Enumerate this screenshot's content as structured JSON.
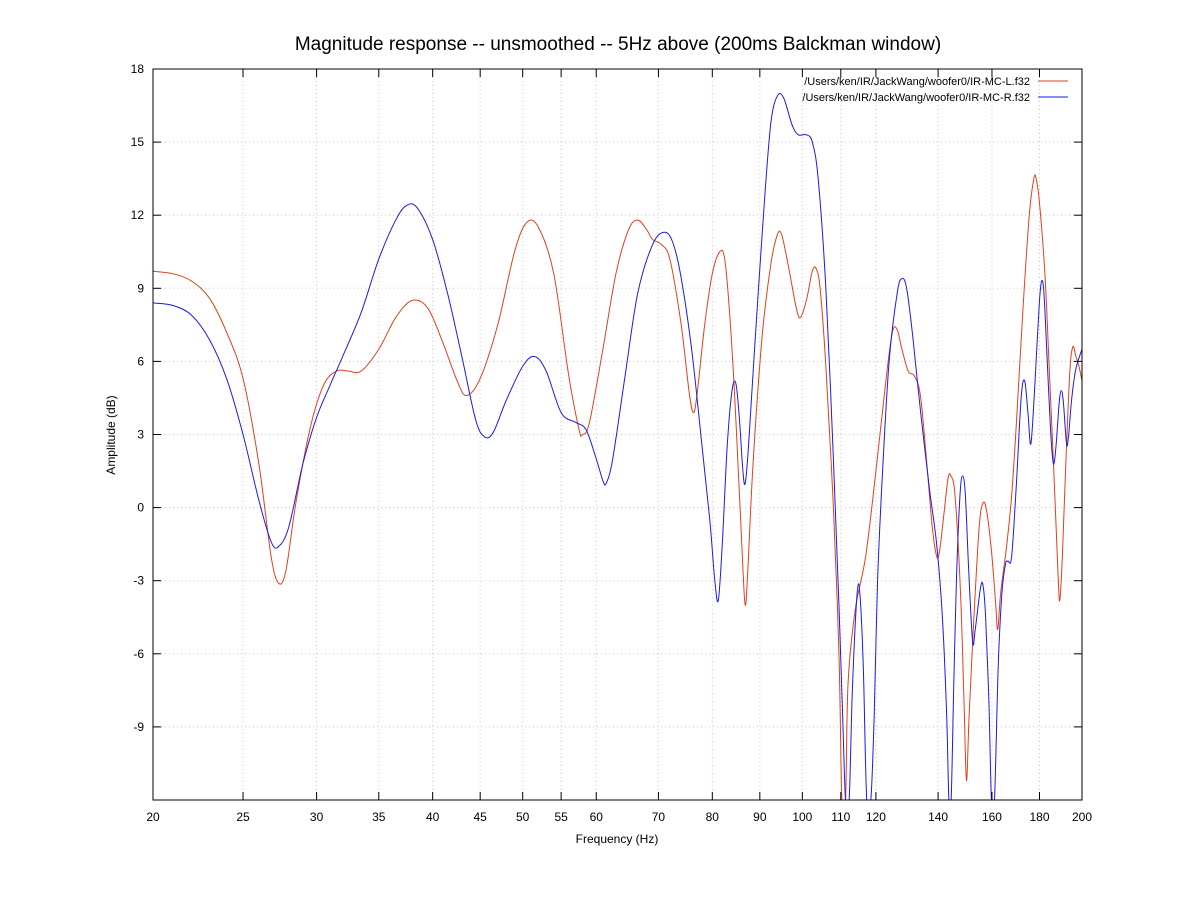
{
  "chart_data": {
    "type": "line",
    "title": "Magnitude response -- unsmoothed -- 5Hz above (200ms Balckman window)",
    "xlabel": "Frequency (Hz)",
    "ylabel": "Amplitude (dB)",
    "xscale": "log",
    "xlim": [
      20,
      200
    ],
    "ylim": [
      -12,
      18
    ],
    "xticks": [
      20,
      25,
      30,
      35,
      40,
      45,
      50,
      55,
      60,
      70,
      80,
      90,
      100,
      110,
      120,
      140,
      160,
      180,
      200
    ],
    "yticks": [
      -9,
      -6,
      -3,
      0,
      3,
      6,
      9,
      12,
      15,
      18
    ],
    "grid": true,
    "legend_position": "top-right",
    "series": [
      {
        "name": "/Users/ken/IR/JackWang/woofer0/IR-MC-L.f32",
        "color": "#e0401a",
        "points": [
          [
            20,
            9.7
          ],
          [
            21,
            9.6
          ],
          [
            22,
            9.3
          ],
          [
            23,
            8.6
          ],
          [
            24,
            7.2
          ],
          [
            25,
            5.3
          ],
          [
            26,
            1.8
          ],
          [
            26.8,
            -2.0
          ],
          [
            27.3,
            -3.1
          ],
          [
            27.8,
            -2.6
          ],
          [
            28.5,
            0.2
          ],
          [
            29.5,
            3.2
          ],
          [
            30.5,
            5.0
          ],
          [
            31.5,
            5.6
          ],
          [
            32.5,
            5.6
          ],
          [
            33.5,
            5.6
          ],
          [
            35,
            6.5
          ],
          [
            36.5,
            7.8
          ],
          [
            38,
            8.5
          ],
          [
            39.5,
            8.2
          ],
          [
            41,
            6.8
          ],
          [
            42.5,
            5.2
          ],
          [
            43.5,
            4.6
          ],
          [
            45,
            5.3
          ],
          [
            47,
            7.5
          ],
          [
            49,
            10.5
          ],
          [
            50.5,
            11.7
          ],
          [
            52,
            11.5
          ],
          [
            54,
            9.6
          ],
          [
            56,
            5.5
          ],
          [
            57.5,
            3.2
          ],
          [
            58,
            3.0
          ],
          [
            59,
            3.5
          ],
          [
            61,
            6.5
          ],
          [
            63,
            9.6
          ],
          [
            65,
            11.4
          ],
          [
            66.5,
            11.8
          ],
          [
            68,
            11.4
          ],
          [
            69,
            11.0
          ],
          [
            70.5,
            10.8
          ],
          [
            72,
            10.2
          ],
          [
            74,
            7.6
          ],
          [
            75.5,
            4.8
          ],
          [
            76.3,
            3.9
          ],
          [
            77,
            4.6
          ],
          [
            78.5,
            7.5
          ],
          [
            80,
            9.6
          ],
          [
            81.5,
            10.5
          ],
          [
            82.5,
            10.2
          ],
          [
            83.5,
            8.0
          ],
          [
            84.5,
            4.8
          ],
          [
            85.5,
            0.8
          ],
          [
            86.3,
            -2.5
          ],
          [
            86.8,
            -4.0
          ],
          [
            87.3,
            -2.8
          ],
          [
            88.5,
            1.8
          ],
          [
            90.5,
            7.0
          ],
          [
            92.5,
            10.0
          ],
          [
            94,
            11.2
          ],
          [
            95,
            11.2
          ],
          [
            96.5,
            10.0
          ],
          [
            98.5,
            8.2
          ],
          [
            99.5,
            7.8
          ],
          [
            101,
            8.5
          ],
          [
            102.5,
            9.7
          ],
          [
            103.5,
            9.8
          ],
          [
            104.5,
            9.0
          ],
          [
            106,
            5.8
          ],
          [
            108,
            0.0
          ],
          [
            109.5,
            -6.0
          ],
          [
            110.3,
            -12.0
          ],
          [
            111.3,
            -12.0
          ],
          [
            112,
            -7.2
          ],
          [
            114,
            -4.2
          ],
          [
            117,
            -2.0
          ],
          [
            120,
            1.5
          ],
          [
            123,
            5.2
          ],
          [
            125,
            7.2
          ],
          [
            126.5,
            7.3
          ],
          [
            128,
            6.5
          ],
          [
            130,
            5.6
          ],
          [
            132,
            5.4
          ],
          [
            134,
            4.6
          ],
          [
            136,
            2.0
          ],
          [
            138,
            -0.8
          ],
          [
            139.5,
            -2.0
          ],
          [
            140.5,
            -1.8
          ],
          [
            142,
            -0.3
          ],
          [
            143.5,
            1.2
          ],
          [
            144.5,
            1.3
          ],
          [
            146,
            0.5
          ],
          [
            148,
            -3.5
          ],
          [
            149.3,
            -8.0
          ],
          [
            150.2,
            -11.2
          ],
          [
            151.2,
            -8.5
          ],
          [
            153,
            -4.5
          ],
          [
            155,
            -0.8
          ],
          [
            156.5,
            0.2
          ],
          [
            158,
            -0.2
          ],
          [
            160,
            -2.0
          ],
          [
            161.5,
            -4.0
          ],
          [
            162.3,
            -5.0
          ],
          [
            163.5,
            -3.5
          ],
          [
            166,
            -1.5
          ],
          [
            168,
            0.5
          ],
          [
            170,
            3.5
          ],
          [
            173,
            8.5
          ],
          [
            175.5,
            12.0
          ],
          [
            177.5,
            13.5
          ],
          [
            178.5,
            13.5
          ],
          [
            180,
            12.5
          ],
          [
            182.5,
            9.5
          ],
          [
            184.5,
            5.5
          ],
          [
            186.5,
            1.5
          ],
          [
            188.5,
            -2.8
          ],
          [
            189.3,
            -3.8
          ],
          [
            190.5,
            -2.0
          ],
          [
            192,
            1.5
          ],
          [
            194,
            5.5
          ],
          [
            195.5,
            6.6
          ],
          [
            197,
            6.2
          ],
          [
            198.5,
            5.8
          ],
          [
            200,
            5.2
          ]
        ]
      },
      {
        "name": "/Users/ken/IR/JackWang/woofer0/IR-MC-R.f32",
        "color": "#1a1aee",
        "points": [
          [
            20,
            8.4
          ],
          [
            21,
            8.3
          ],
          [
            22,
            7.9
          ],
          [
            23,
            6.9
          ],
          [
            24,
            5.3
          ],
          [
            25,
            3.0
          ],
          [
            26,
            0.3
          ],
          [
            26.8,
            -1.4
          ],
          [
            27.3,
            -1.6
          ],
          [
            28,
            -0.8
          ],
          [
            29,
            1.8
          ],
          [
            30,
            3.7
          ],
          [
            31,
            5.0
          ],
          [
            32,
            6.2
          ],
          [
            33.5,
            8.0
          ],
          [
            35,
            10.2
          ],
          [
            36.5,
            11.8
          ],
          [
            37.5,
            12.4
          ],
          [
            38.5,
            12.3
          ],
          [
            40,
            11.0
          ],
          [
            41.5,
            8.8
          ],
          [
            43,
            6.2
          ],
          [
            44.5,
            3.6
          ],
          [
            45.5,
            2.9
          ],
          [
            46.5,
            3.1
          ],
          [
            48,
            4.4
          ],
          [
            50,
            5.8
          ],
          [
            51.5,
            6.2
          ],
          [
            53,
            5.6
          ],
          [
            55,
            3.9
          ],
          [
            57,
            3.5
          ],
          [
            58.5,
            3.2
          ],
          [
            60,
            2.0
          ],
          [
            61,
            1.1
          ],
          [
            61.5,
            1.0
          ],
          [
            62.5,
            2.0
          ],
          [
            64.5,
            5.5
          ],
          [
            66.5,
            8.8
          ],
          [
            69,
            10.8
          ],
          [
            71,
            11.3
          ],
          [
            72.5,
            10.9
          ],
          [
            74,
            9.5
          ],
          [
            76,
            6.5
          ],
          [
            78,
            2.5
          ],
          [
            79.5,
            -0.5
          ],
          [
            80.5,
            -3.0
          ],
          [
            81.2,
            -3.8
          ],
          [
            82,
            -1.5
          ],
          [
            83,
            2.5
          ],
          [
            84,
            4.8
          ],
          [
            84.8,
            5.1
          ],
          [
            85.5,
            3.8
          ],
          [
            86.3,
            1.5
          ],
          [
            86.8,
            1.0
          ],
          [
            87.5,
            2.5
          ],
          [
            89,
            7.0
          ],
          [
            91,
            12.5
          ],
          [
            92.5,
            15.8
          ],
          [
            94,
            16.9
          ],
          [
            95.5,
            16.8
          ],
          [
            97.5,
            15.7
          ],
          [
            99,
            15.3
          ],
          [
            101,
            15.3
          ],
          [
            102.5,
            15.0
          ],
          [
            104,
            13.5
          ],
          [
            106,
            9.0
          ],
          [
            108,
            2.0
          ],
          [
            109.5,
            -4.0
          ],
          [
            110.5,
            -8.5
          ],
          [
            111.3,
            -12.0
          ],
          [
            112.3,
            -12.0
          ],
          [
            113.2,
            -7.5
          ],
          [
            114.5,
            -3.6
          ],
          [
            115.3,
            -3.5
          ],
          [
            116.3,
            -6.5
          ],
          [
            117.3,
            -12.0
          ],
          [
            118.5,
            -12.0
          ],
          [
            119.5,
            -8.5
          ],
          [
            120.5,
            -3.0
          ],
          [
            122,
            1.5
          ],
          [
            124,
            6.0
          ],
          [
            126.5,
            8.8
          ],
          [
            128,
            9.4
          ],
          [
            129.5,
            9.0
          ],
          [
            131.5,
            7.0
          ],
          [
            134,
            4.0
          ],
          [
            137,
            0.8
          ],
          [
            139.5,
            -1.5
          ],
          [
            141.5,
            -4.5
          ],
          [
            143,
            -8.5
          ],
          [
            143.8,
            -12.0
          ],
          [
            144.6,
            -12.0
          ],
          [
            145.5,
            -7.5
          ],
          [
            146.5,
            -3.0
          ],
          [
            147.8,
            0.5
          ],
          [
            148.8,
            1.3
          ],
          [
            149.8,
            0.5
          ],
          [
            151,
            -2.5
          ],
          [
            152.5,
            -5.5
          ],
          [
            153.5,
            -5.0
          ],
          [
            155.5,
            -3.3
          ],
          [
            156.5,
            -3.2
          ],
          [
            157.5,
            -4.5
          ],
          [
            158.8,
            -8.0
          ],
          [
            159.8,
            -12.0
          ],
          [
            161,
            -12.0
          ],
          [
            162.5,
            -6.5
          ],
          [
            164,
            -3.5
          ],
          [
            165.5,
            -2.3
          ],
          [
            166.5,
            -2.2
          ],
          [
            168,
            -2.0
          ],
          [
            170,
            1.0
          ],
          [
            172,
            4.5
          ],
          [
            173.5,
            5.2
          ],
          [
            175,
            3.8
          ],
          [
            176,
            2.6
          ],
          [
            177,
            3.5
          ],
          [
            178.5,
            6.0
          ],
          [
            180,
            8.5
          ],
          [
            181,
            9.3
          ],
          [
            182,
            8.8
          ],
          [
            183.5,
            6.0
          ],
          [
            185,
            3.2
          ],
          [
            186.3,
            1.8
          ],
          [
            187.5,
            2.5
          ],
          [
            189,
            4.3
          ],
          [
            190,
            4.8
          ],
          [
            191,
            4.3
          ],
          [
            192.5,
            2.6
          ],
          [
            193.5,
            3.0
          ],
          [
            195,
            4.5
          ],
          [
            197,
            5.7
          ],
          [
            200,
            6.5
          ]
        ]
      }
    ]
  }
}
